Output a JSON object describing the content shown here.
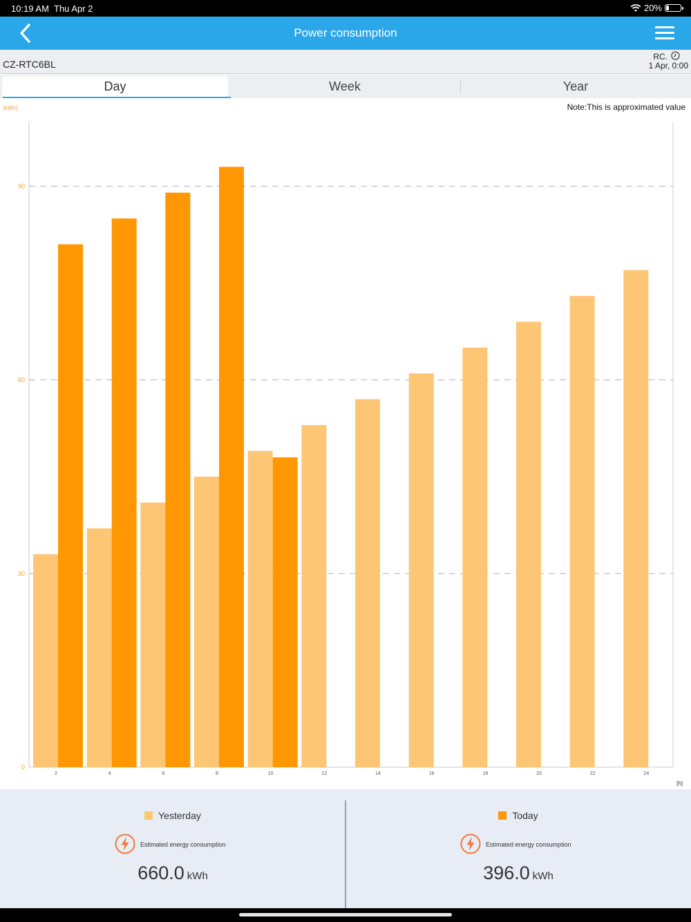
{
  "status": {
    "time": "10:19 AM",
    "date": "Thu Apr 2",
    "battery": "20%",
    "battery_level": 0.2
  },
  "nav": {
    "title": "Power consumption"
  },
  "device": {
    "model": "CZ-RTC6BL",
    "rc_label": "RC.",
    "rc_date": "1 Apr, 0:00"
  },
  "tabs": [
    {
      "label": "Day"
    },
    {
      "label": "Week"
    },
    {
      "label": "Year"
    }
  ],
  "active_tab": "Day",
  "chart_header": {
    "unit_label": "[kWh]",
    "note": "Note:This is approximated value",
    "x_unit": "[h]"
  },
  "chart_data": {
    "type": "bar",
    "categories": [
      "2",
      "4",
      "6",
      "8",
      "10",
      "12",
      "14",
      "16",
      "18",
      "20",
      "22",
      "24"
    ],
    "yticks": [
      "0",
      "30",
      "60",
      "90"
    ],
    "ylim": [
      0,
      100
    ],
    "grid": "dashed horizontal",
    "series": [
      {
        "name": "Yesterday",
        "color": "#fdc675",
        "values": [
          33,
          37,
          41,
          45,
          49,
          53,
          57,
          61,
          65,
          69,
          73,
          77
        ]
      },
      {
        "name": "Today",
        "color": "#ff9703",
        "values": [
          81,
          85,
          89,
          93,
          48,
          null,
          null,
          null,
          null,
          null,
          null,
          null
        ]
      }
    ]
  },
  "summary": {
    "yesterday": {
      "legend": "Yesterday",
      "label": "Estimated energy consumption",
      "value": "660.0",
      "unit": "kWh"
    },
    "today": {
      "legend": "Today",
      "label": "Estimated energy consumption",
      "value": "396.0",
      "unit": "kWh"
    }
  },
  "colors": {
    "accent": "#2aa7e8",
    "yesterday": "#fdc675",
    "today": "#ff9703",
    "icon": "#f07a3a"
  }
}
